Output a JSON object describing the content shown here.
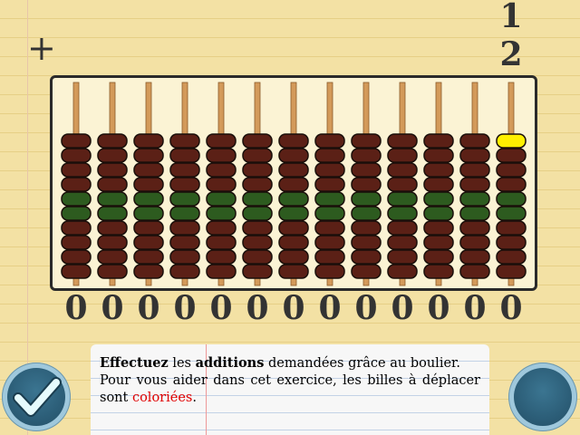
{
  "problem": {
    "operator": "+",
    "operands": [
      "1",
      "2"
    ]
  },
  "abacus": {
    "rods": 13,
    "digits": [
      "0",
      "0",
      "0",
      "0",
      "0",
      "0",
      "0",
      "0",
      "0",
      "0",
      "0",
      "0",
      "0"
    ],
    "highlighted_bead": {
      "rod_index": 12,
      "position": 0
    },
    "colors": {
      "bead": "#5b2016",
      "bead_middle": "#2d5b1f",
      "bead_highlight": "#fff000",
      "rod": "#d39a5a"
    }
  },
  "instruction": {
    "part1": "Effectuez",
    "part2": " les ",
    "part3": "additions",
    "part4": " demandées grâce au boulier.",
    "line2": "Pour vous aider dans cet exercice, les billes à déplacer sont ",
    "colored_word": "coloriées",
    "end": "."
  },
  "buttons": {
    "validate_icon": "checkmark-icon",
    "next_icon": "blank-button"
  }
}
